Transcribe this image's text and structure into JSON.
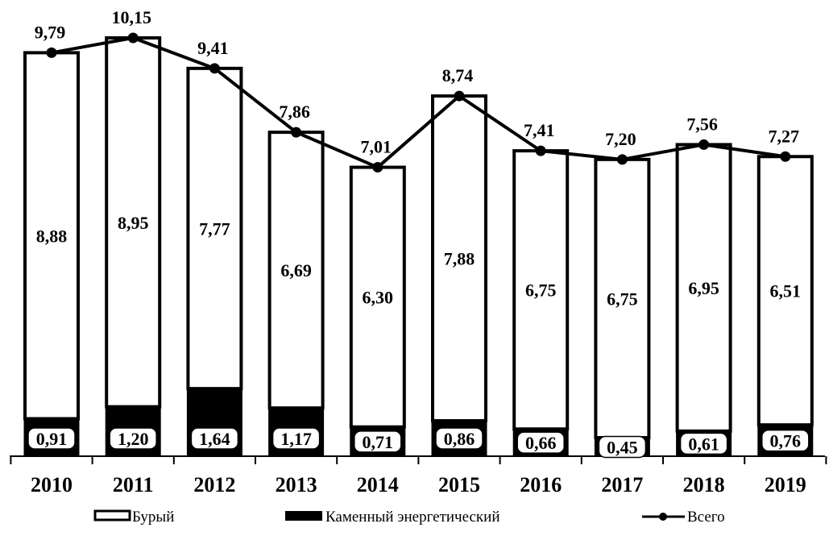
{
  "chart_data": {
    "type": "bar",
    "stacked": true,
    "categories": [
      "2010",
      "2011",
      "2012",
      "2013",
      "2014",
      "2015",
      "2016",
      "2017",
      "2018",
      "2019"
    ],
    "series": [
      {
        "name": "Каменный энергетический",
        "kind": "bar",
        "values": [
          0.91,
          1.2,
          1.64,
          1.17,
          0.71,
          0.86,
          0.66,
          0.45,
          0.61,
          0.76
        ],
        "labels": [
          "0,91",
          "1,20",
          "1,64",
          "1,17",
          "0,71",
          "0,86",
          "0,66",
          "0,45",
          "0,61",
          "0,76"
        ],
        "color": "#000000"
      },
      {
        "name": "Бурый",
        "kind": "bar",
        "values": [
          8.88,
          8.95,
          7.77,
          6.69,
          6.3,
          7.88,
          6.75,
          6.75,
          6.95,
          6.51
        ],
        "labels": [
          "8,88",
          "8,95",
          "7,77",
          "6,69",
          "6,30",
          "7,88",
          "6,75",
          "6,75",
          "6,95",
          "6,51"
        ],
        "color": "#ffffff"
      },
      {
        "name": "Всего",
        "kind": "line",
        "values": [
          9.79,
          10.15,
          9.41,
          7.86,
          7.01,
          8.74,
          7.41,
          7.2,
          7.56,
          7.27
        ],
        "labels": [
          "9,79",
          "10,15",
          "9,41",
          "7,86",
          "7,01",
          "8,74",
          "7,41",
          "7,20",
          "7,56",
          "7,27"
        ],
        "color": "#000000"
      }
    ],
    "ylim": [
      0,
      10.5
    ],
    "grid": false,
    "legend_position": "bottom"
  }
}
